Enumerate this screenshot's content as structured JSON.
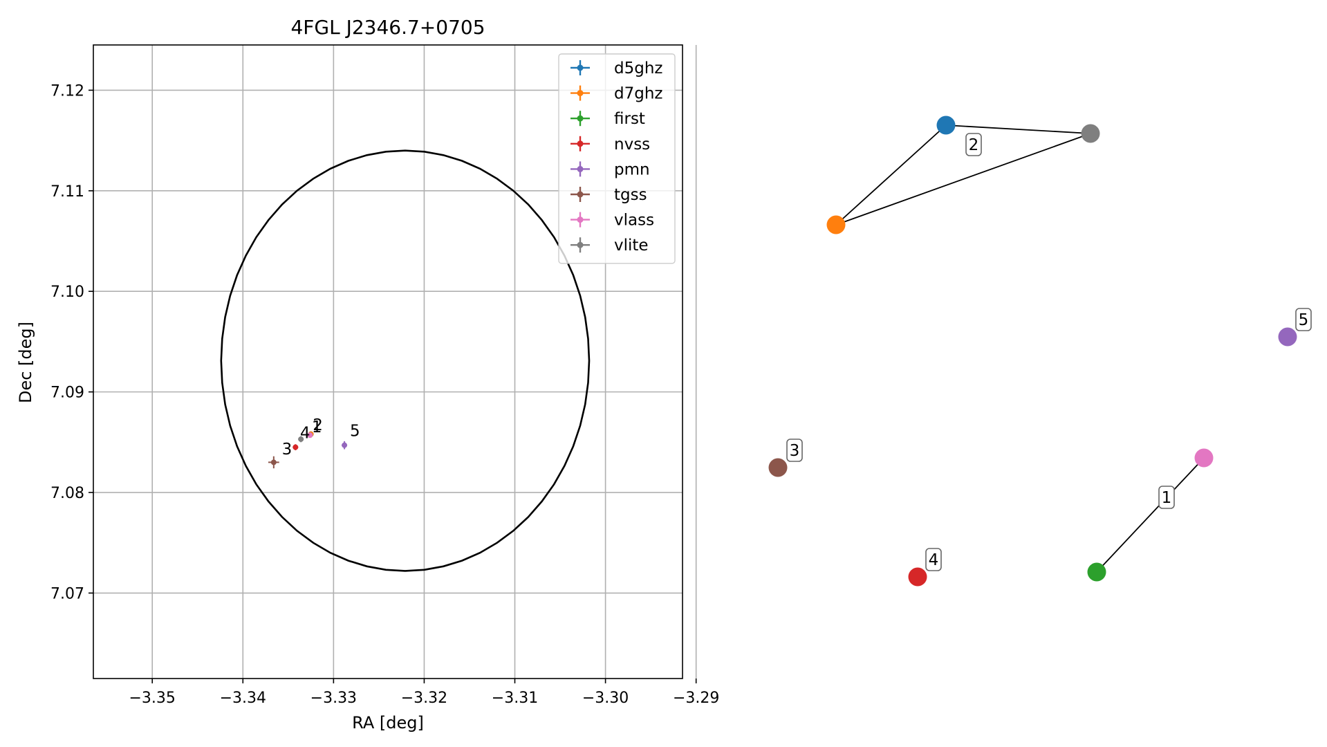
{
  "chart_data": [
    {
      "type": "scatter",
      "title": "4FGL J2346.7+0705",
      "xlabel": "RA [deg]",
      "ylabel": "Dec [deg]",
      "xlim": [
        -3.3565,
        -3.2915
      ],
      "ylim": [
        7.0615,
        7.1245
      ],
      "xticks": [
        -3.35,
        -3.34,
        -3.33,
        -3.32,
        -3.31,
        -3.3,
        -3.29
      ],
      "xtick_labels": [
        "−3.35",
        "−3.34",
        "−3.33",
        "−3.32",
        "−3.31",
        "−3.30",
        "−3.29"
      ],
      "yticks": [
        7.07,
        7.08,
        7.09,
        7.1,
        7.11,
        7.12
      ],
      "ytick_labels": [
        "7.07",
        "7.08",
        "7.09",
        "7.10",
        "7.11",
        "7.12"
      ],
      "grid": true,
      "legend_position": "top-right",
      "ellipse": {
        "center": [
          -3.3221,
          7.0931
        ],
        "semi_axis_ra": 0.0203,
        "semi_axis_dec": 0.0209,
        "color": "#000000"
      },
      "series": [
        {
          "name": "d5ghz",
          "color": "#1f77b4",
          "x": [
            -3.3325
          ],
          "y": [
            7.0858
          ],
          "xerr": 0.0002,
          "yerr": 0.0002
        },
        {
          "name": "d7ghz",
          "color": "#ff7f0e",
          "x": [
            -3.3325
          ],
          "y": [
            7.0858
          ],
          "xerr": 0.0002,
          "yerr": 0.0002
        },
        {
          "name": "first",
          "color": "#2ca02c",
          "x": [
            -3.3326
          ],
          "y": [
            7.0857
          ],
          "xerr": 0.0002,
          "yerr": 0.0002
        },
        {
          "name": "nvss",
          "color": "#d62728",
          "x": [
            -3.3342
          ],
          "y": [
            7.0845
          ],
          "xerr": 0.0003,
          "yerr": 0.0003
        },
        {
          "name": "pmn",
          "color": "#9467bd",
          "x": [
            -3.3288
          ],
          "y": [
            7.0847
          ],
          "xerr": 0.0003,
          "yerr": 0.0004
        },
        {
          "name": "tgss",
          "color": "#8c564b",
          "x": [
            -3.3366
          ],
          "y": [
            7.083
          ],
          "xerr": 0.0006,
          "yerr": 0.0006
        },
        {
          "name": "vlass",
          "color": "#e377c2",
          "x": [
            -3.3326
          ],
          "y": [
            7.0857
          ],
          "xerr": 0.0002,
          "yerr": 0.0002
        },
        {
          "name": "vlite",
          "color": "#7f7f7f",
          "x": [
            -3.3336
          ],
          "y": [
            7.0853
          ],
          "xerr": 0.0003,
          "yerr": 0.0003
        }
      ],
      "annotations": [
        {
          "text": "1",
          "x": -3.3324,
          "y": 7.086
        },
        {
          "text": "2",
          "x": -3.3323,
          "y": 7.0862
        },
        {
          "text": "3",
          "x": -3.3357,
          "y": 7.0838
        },
        {
          "text": "4",
          "x": -3.3337,
          "y": 7.0854
        },
        {
          "text": "5",
          "x": -3.3282,
          "y": 7.0856
        }
      ]
    },
    {
      "type": "network",
      "nodes": [
        {
          "id": "d5ghz",
          "color": "#1f77b4"
        },
        {
          "id": "d7ghz",
          "color": "#ff7f0e"
        },
        {
          "id": "vlite",
          "color": "#7f7f7f"
        },
        {
          "id": "pmn",
          "color": "#9467bd"
        },
        {
          "id": "tgss",
          "color": "#8c564b"
        },
        {
          "id": "vlass",
          "color": "#e377c2"
        },
        {
          "id": "first",
          "color": "#2ca02c"
        },
        {
          "id": "nvss",
          "color": "#d62728"
        }
      ],
      "edges": [
        [
          "d5ghz",
          "vlite"
        ],
        [
          "d5ghz",
          "d7ghz"
        ],
        [
          "d7ghz",
          "vlite"
        ],
        [
          "first",
          "vlass"
        ]
      ],
      "group_labels": [
        {
          "text": "1",
          "boxed": true
        },
        {
          "text": "2",
          "boxed": true
        },
        {
          "text": "3",
          "boxed": true
        },
        {
          "text": "4",
          "boxed": true
        },
        {
          "text": "5",
          "boxed": true
        }
      ]
    }
  ]
}
